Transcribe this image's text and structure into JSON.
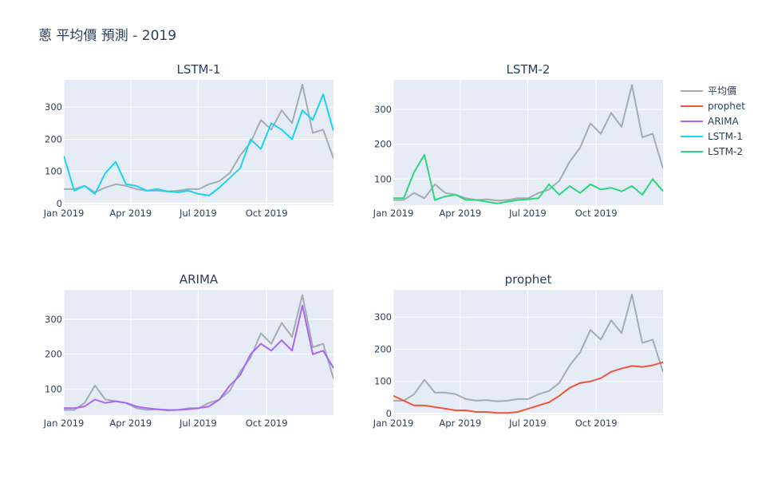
{
  "title": "蔥 平均價 預測 - 2019",
  "legend": {
    "placement": "right",
    "entries": [
      {
        "name": "平均價",
        "color": "#a3acb2"
      },
      {
        "name": "prophet",
        "color": "#EF553B"
      },
      {
        "name": "ARIMA",
        "color": "#AB63FA"
      },
      {
        "name": "LSTM-1",
        "color": "#19D3F3"
      },
      {
        "name": "LSTM-2",
        "color": "#2CD67F"
      }
    ]
  },
  "chart_data": [
    {
      "type": "line",
      "title": "LSTM-1",
      "xlabel": "",
      "ylabel": "",
      "x_ticks": [
        "Jan 2019",
        "Apr 2019",
        "Jul 2019",
        "Oct 2019"
      ],
      "y_ticks": [
        0,
        100,
        200,
        300
      ],
      "ylim": [
        -5,
        385
      ],
      "grid": true,
      "series": [
        {
          "name": "平均價",
          "color": "#a3acb2",
          "x": [
            1,
            3,
            5,
            7,
            9,
            11,
            13,
            15,
            17,
            19,
            21,
            23,
            25,
            27,
            29,
            31,
            33,
            35,
            37,
            39,
            41,
            43,
            45,
            47,
            49,
            51,
            53
          ],
          "values": [
            45,
            45,
            55,
            35,
            50,
            60,
            55,
            45,
            40,
            40,
            38,
            40,
            45,
            45,
            60,
            70,
            95,
            150,
            190,
            260,
            230,
            290,
            250,
            370,
            220,
            230,
            140
          ]
        },
        {
          "name": "LSTM-1",
          "color": "#19D3F3",
          "x": [
            1,
            3,
            5,
            7,
            9,
            11,
            13,
            15,
            17,
            19,
            21,
            23,
            25,
            27,
            29,
            31,
            33,
            35,
            37,
            39,
            41,
            43,
            45,
            47,
            49,
            51,
            53
          ],
          "values": [
            148,
            40,
            55,
            30,
            95,
            130,
            60,
            55,
            40,
            45,
            38,
            35,
            40,
            30,
            25,
            50,
            80,
            110,
            200,
            170,
            250,
            230,
            200,
            290,
            260,
            340,
            225
          ]
        }
      ]
    },
    {
      "type": "line",
      "title": "LSTM-2",
      "xlabel": "",
      "ylabel": "",
      "x_ticks": [
        "Jan 2019",
        "Apr 2019",
        "Jul 2019",
        "Oct 2019"
      ],
      "y_ticks": [
        100,
        200,
        300
      ],
      "ylim": [
        25,
        385
      ],
      "grid": true,
      "series": [
        {
          "name": "平均價",
          "color": "#a3acb2",
          "x": [
            1,
            3,
            5,
            7,
            9,
            11,
            13,
            15,
            17,
            19,
            21,
            23,
            25,
            27,
            29,
            31,
            33,
            35,
            37,
            39,
            41,
            43,
            45,
            47,
            49,
            51,
            53
          ],
          "values": [
            40,
            40,
            60,
            45,
            85,
            60,
            55,
            45,
            40,
            42,
            38,
            40,
            45,
            45,
            60,
            70,
            95,
            150,
            190,
            260,
            230,
            290,
            250,
            370,
            220,
            230,
            130
          ]
        },
        {
          "name": "LSTM-2",
          "color": "#2CD67F",
          "x": [
            1,
            3,
            5,
            7,
            9,
            11,
            13,
            15,
            17,
            19,
            21,
            23,
            25,
            27,
            29,
            31,
            33,
            35,
            37,
            39,
            41,
            43,
            45,
            47,
            49,
            51,
            53
          ],
          "values": [
            45,
            45,
            120,
            170,
            40,
            50,
            55,
            40,
            40,
            35,
            30,
            35,
            40,
            42,
            45,
            85,
            55,
            80,
            60,
            85,
            70,
            75,
            65,
            80,
            55,
            100,
            65
          ]
        }
      ]
    },
    {
      "type": "line",
      "title": "ARIMA",
      "xlabel": "",
      "ylabel": "",
      "x_ticks": [
        "Jan 2019",
        "Apr 2019",
        "Jul 2019",
        "Oct 2019"
      ],
      "y_ticks": [
        100,
        200,
        300
      ],
      "ylim": [
        25,
        385
      ],
      "grid": true,
      "series": [
        {
          "name": "平均價",
          "color": "#a3acb2",
          "x": [
            1,
            3,
            5,
            7,
            9,
            11,
            13,
            15,
            17,
            19,
            21,
            23,
            25,
            27,
            29,
            31,
            33,
            35,
            37,
            39,
            41,
            43,
            45,
            47,
            49,
            51,
            53
          ],
          "values": [
            40,
            40,
            60,
            110,
            70,
            65,
            60,
            45,
            40,
            42,
            38,
            40,
            45,
            45,
            60,
            70,
            95,
            150,
            190,
            260,
            230,
            290,
            250,
            370,
            220,
            230,
            130
          ]
        },
        {
          "name": "ARIMA",
          "color": "#AB63FA",
          "x": [
            1,
            3,
            5,
            7,
            9,
            11,
            13,
            15,
            17,
            19,
            21,
            23,
            25,
            27,
            29,
            31,
            33,
            35,
            37,
            39,
            41,
            43,
            45,
            47,
            49,
            51,
            53
          ],
          "values": [
            45,
            45,
            50,
            70,
            60,
            65,
            60,
            50,
            45,
            42,
            40,
            40,
            42,
            45,
            50,
            70,
            110,
            140,
            200,
            230,
            210,
            240,
            210,
            340,
            200,
            210,
            160
          ]
        }
      ]
    },
    {
      "type": "line",
      "title": "prophet",
      "xlabel": "",
      "ylabel": "",
      "x_ticks": [
        "Jan 2019",
        "Apr 2019",
        "Jul 2019",
        "Oct 2019"
      ],
      "y_ticks": [
        0,
        100,
        200,
        300
      ],
      "ylim": [
        -5,
        385
      ],
      "grid": true,
      "series": [
        {
          "name": "平均價",
          "color": "#a3acb2",
          "x": [
            1,
            3,
            5,
            7,
            9,
            11,
            13,
            15,
            17,
            19,
            21,
            23,
            25,
            27,
            29,
            31,
            33,
            35,
            37,
            39,
            41,
            43,
            45,
            47,
            49,
            51,
            53
          ],
          "values": [
            40,
            40,
            60,
            105,
            65,
            65,
            60,
            45,
            40,
            42,
            38,
            40,
            45,
            45,
            60,
            70,
            95,
            150,
            190,
            260,
            230,
            290,
            250,
            370,
            220,
            230,
            130
          ]
        },
        {
          "name": "prophet",
          "color": "#EF553B",
          "x": [
            1,
            3,
            5,
            7,
            9,
            11,
            13,
            15,
            17,
            19,
            21,
            23,
            25,
            27,
            29,
            31,
            33,
            35,
            37,
            39,
            41,
            43,
            45,
            47,
            49,
            51,
            53
          ],
          "values": [
            55,
            40,
            25,
            25,
            20,
            15,
            10,
            10,
            5,
            5,
            2,
            2,
            5,
            15,
            25,
            35,
            55,
            80,
            95,
            100,
            110,
            130,
            140,
            148,
            145,
            150,
            160
          ]
        }
      ]
    }
  ]
}
